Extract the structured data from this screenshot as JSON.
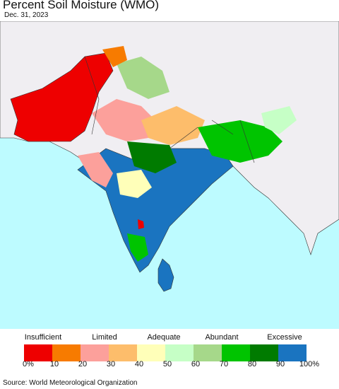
{
  "title": "Percent Soil Moisture (WMO)",
  "date": "Dec. 31, 2023",
  "source": "Source: World Meteorological Organization",
  "legend": {
    "categories": [
      {
        "label": "Insufficient"
      },
      {
        "label": "Limited"
      },
      {
        "label": "Adequate"
      },
      {
        "label": "Abundant"
      },
      {
        "label": "Excessive"
      }
    ],
    "colors": [
      "#ee0000",
      "#f77b00",
      "#fca09b",
      "#fdbd6b",
      "#ffffb9",
      "#c6ffc6",
      "#a6d88a",
      "#00c400",
      "#007b00",
      "#1a74c0"
    ],
    "ticks": [
      "0%",
      "10",
      "20",
      "30",
      "40",
      "50",
      "60",
      "70",
      "80",
      "90",
      "100%"
    ]
  },
  "map_colors": {
    "ocean": "#bdfbff",
    "land": "#f0eef2",
    "border": "#333333"
  }
}
